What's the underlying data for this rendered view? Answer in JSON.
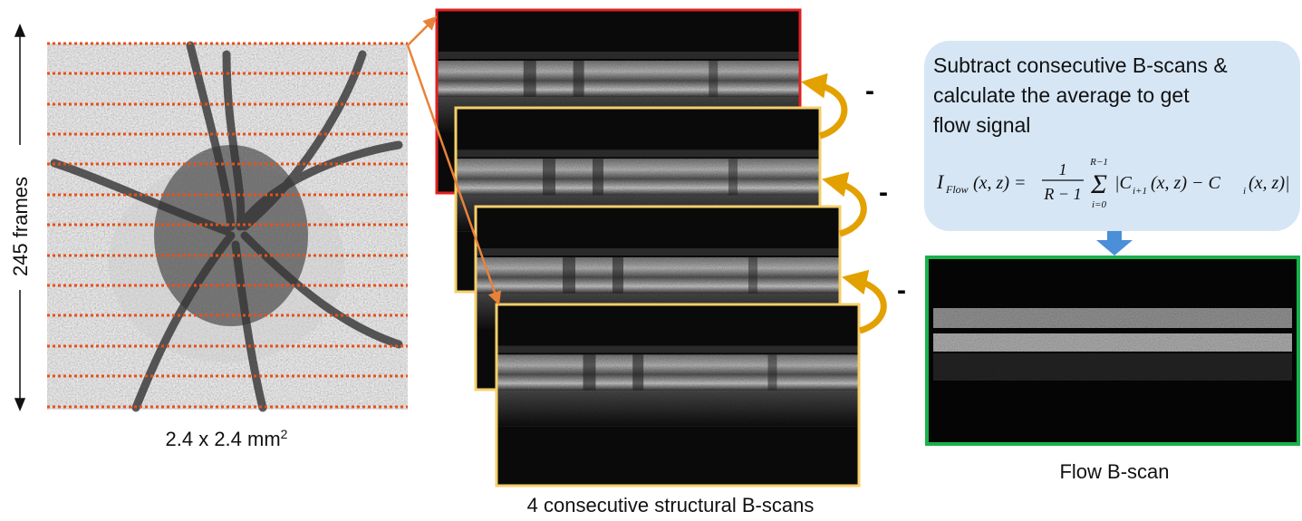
{
  "fundus": {
    "frames_label": "245 frames",
    "size_label": "2.4 x 2.4 mm",
    "size_label_superscript": "2"
  },
  "bscans": {
    "caption": "4 consecutive structural B-scans",
    "minus_signs": [
      "-",
      "-",
      "-"
    ]
  },
  "process_box": {
    "lines": [
      "Subtract consecutive B-scans &",
      "calculate the average to get",
      "flow signal"
    ],
    "formula": {
      "lhs": "I",
      "lhs_sub": "Flow",
      "lhs_args": "(x, z) =",
      "numerator": "1",
      "denominator": "R − 1",
      "sum_symbol": "Σ",
      "sum_upper": "R−1",
      "sum_lower": "i=0",
      "term1": "|C",
      "term1_sub": "i+1",
      "term1_args": "(x, z) − C",
      "term2_sub": "i",
      "term2_args": "(x, z)|"
    }
  },
  "flow": {
    "caption": "Flow B-scan"
  }
}
